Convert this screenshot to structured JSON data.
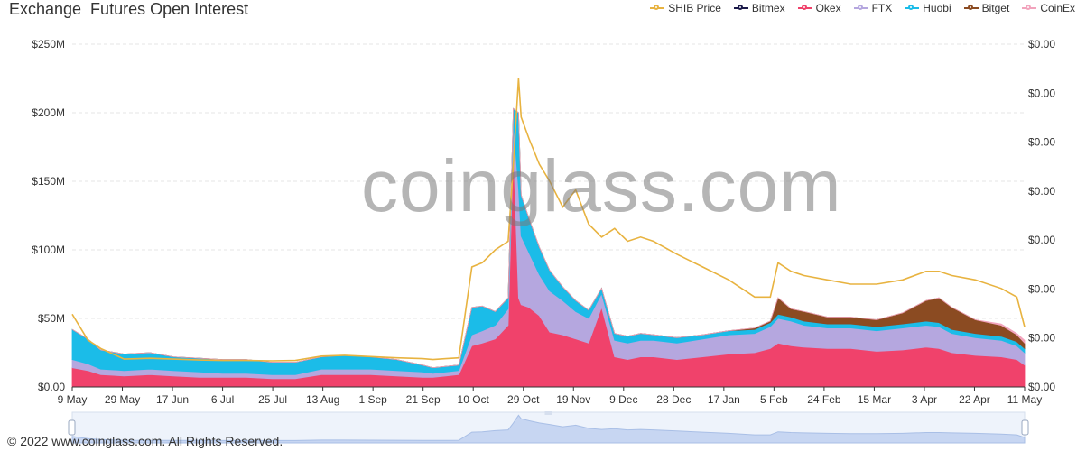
{
  "title": "Exchange  Futures Open Interest",
  "watermark": "coinglass.com",
  "footer": "© 2022 www.coinglass.com. All Rights Reserved.",
  "colors": {
    "shib": "#e8b340",
    "bitmex": "#1b1a4a",
    "okex": "#f0426b",
    "ftx": "#b5a7df",
    "huobi": "#1bbce8",
    "bitget": "#8b4b22",
    "coinex": "#f2a4bd"
  },
  "chart_data": {
    "type": "area",
    "title": "Exchange  Futures Open Interest",
    "x_ticks": [
      "9 May",
      "29 May",
      "17 Jun",
      "6 Jul",
      "25 Jul",
      "13 Aug",
      "1 Sep",
      "21 Sep",
      "10 Oct",
      "29 Oct",
      "19 Nov",
      "9 Dec",
      "28 Dec",
      "17 Jan",
      "5 Feb",
      "24 Feb",
      "15 Mar",
      "3 Apr",
      "22 Apr",
      "11 May"
    ],
    "y_left_ticks": [
      "$0.00",
      "$50M",
      "$100M",
      "$150M",
      "$200M",
      "$250M"
    ],
    "y_left_range": [
      0,
      250
    ],
    "y_left_unit": "M",
    "y_right_ticks": [
      "$0.00",
      "$0.00",
      "$0.00",
      "$0.00",
      "$0.00",
      "$0.00",
      "$0.00",
      "$0.00"
    ],
    "y_right_range": [
      0,
      8e-05
    ],
    "legend_position": "top-right",
    "grid": true,
    "stacked": true,
    "x": [
      "2021-05-09",
      "2021-05-15",
      "2021-05-20",
      "2021-05-29",
      "2021-06-08",
      "2021-06-17",
      "2021-06-27",
      "2021-07-06",
      "2021-07-15",
      "2021-07-25",
      "2021-08-03",
      "2021-08-13",
      "2021-08-22",
      "2021-09-01",
      "2021-09-11",
      "2021-09-21",
      "2021-09-25",
      "2021-09-30",
      "2021-10-05",
      "2021-10-10",
      "2021-10-14",
      "2021-10-19",
      "2021-10-24",
      "2021-10-26",
      "2021-10-28",
      "2021-10-29",
      "2021-11-01",
      "2021-11-05",
      "2021-11-09",
      "2021-11-14",
      "2021-11-19",
      "2021-11-24",
      "2021-11-29",
      "2021-12-04",
      "2021-12-09",
      "2021-12-14",
      "2021-12-19",
      "2021-12-28",
      "2022-01-07",
      "2022-01-17",
      "2022-01-27",
      "2022-02-02",
      "2022-02-05",
      "2022-02-10",
      "2022-02-15",
      "2022-02-24",
      "2022-03-05",
      "2022-03-15",
      "2022-03-25",
      "2022-04-03",
      "2022-04-08",
      "2022-04-13",
      "2022-04-22",
      "2022-05-02",
      "2022-05-08",
      "2022-05-11"
    ],
    "series": [
      {
        "name": "Bitmex",
        "values": [
          0,
          0,
          0,
          0,
          0,
          0,
          0,
          0,
          0,
          0,
          0,
          0,
          0,
          0,
          0,
          0,
          0,
          0,
          0,
          0,
          0,
          0,
          0,
          0,
          0,
          0,
          0,
          0,
          0,
          0,
          0,
          0,
          0,
          0,
          0,
          0,
          0,
          0,
          0,
          0,
          0,
          0,
          0,
          0,
          0,
          0,
          0,
          0,
          0,
          0,
          0,
          0,
          0,
          0,
          0,
          0
        ]
      },
      {
        "name": "Okex",
        "values": [
          14,
          12,
          9,
          8,
          9,
          8,
          7,
          7,
          7,
          6,
          6,
          9,
          9,
          9,
          8,
          7,
          7,
          8,
          9,
          30,
          32,
          35,
          45,
          175,
          65,
          60,
          58,
          52,
          40,
          38,
          35,
          32,
          58,
          22,
          20,
          22,
          22,
          20,
          22,
          24,
          25,
          28,
          32,
          30,
          29,
          28,
          28,
          26,
          27,
          29,
          28,
          25,
          23,
          22,
          20,
          16
        ]
      },
      {
        "name": "FTX",
        "values": [
          6,
          5,
          4,
          4,
          4,
          4,
          4,
          3,
          3,
          3,
          3,
          4,
          4,
          4,
          4,
          4,
          3,
          3,
          3,
          8,
          9,
          10,
          12,
          18,
          80,
          50,
          40,
          30,
          30,
          25,
          20,
          18,
          10,
          12,
          12,
          12,
          12,
          12,
          13,
          14,
          14,
          16,
          18,
          18,
          16,
          15,
          15,
          15,
          16,
          16,
          16,
          14,
          13,
          12,
          10,
          9
        ]
      },
      {
        "name": "Huobi",
        "values": [
          22,
          18,
          14,
          12,
          12,
          10,
          10,
          10,
          10,
          9,
          9,
          9,
          10,
          9,
          8,
          5,
          4,
          4,
          4,
          20,
          18,
          10,
          8,
          10,
          55,
          30,
          25,
          20,
          15,
          10,
          8,
          6,
          4,
          5,
          5,
          5,
          4,
          4,
          3,
          3,
          3,
          3,
          3,
          3,
          3,
          3,
          3,
          3,
          3,
          3,
          3,
          3,
          3,
          3,
          3,
          3
        ]
      },
      {
        "name": "Bitget",
        "values": [
          0,
          0,
          0,
          0,
          0,
          0,
          0,
          0,
          0,
          0,
          0,
          0,
          0,
          0,
          0,
          0,
          0,
          0,
          0,
          0,
          0,
          0,
          0,
          0,
          0,
          0,
          0,
          0,
          0,
          0,
          0,
          0,
          0,
          0,
          0,
          0,
          0,
          0,
          0,
          0,
          1,
          1,
          12,
          6,
          7,
          5,
          5,
          5,
          8,
          15,
          18,
          16,
          10,
          8,
          5,
          4
        ]
      },
      {
        "name": "CoinEx",
        "values": [
          0,
          0,
          0,
          0,
          0,
          0,
          0,
          0,
          0,
          0,
          0,
          0,
          0,
          0,
          0,
          0,
          0,
          0,
          0,
          0,
          0,
          0,
          0,
          0,
          0,
          0,
          0,
          0,
          0,
          0,
          0,
          0,
          0,
          0,
          0,
          0,
          0,
          0,
          0,
          0,
          0,
          0,
          0,
          0,
          0,
          0,
          0,
          0,
          0,
          0,
          0,
          0,
          0,
          1,
          1,
          2
        ]
      },
      {
        "name": "SHIB Price",
        "axis": "right",
        "values": [
          1.7e-05,
          1.1e-05,
          9e-06,
          6.5e-06,
          6.7e-06,
          6.5e-06,
          6.3e-06,
          6.2e-06,
          6.2e-06,
          6.1e-06,
          6.2e-06,
          7.2e-06,
          7.4e-06,
          7.1e-06,
          6.8e-06,
          6.6e-06,
          6.4e-06,
          6.6e-06,
          6.8e-06,
          2.8e-05,
          2.9e-05,
          3.2e-05,
          3.4e-05,
          5.2e-05,
          7.2e-05,
          6.3e-05,
          5.8e-05,
          5.2e-05,
          4.8e-05,
          4.2e-05,
          4.6e-05,
          3.8e-05,
          3.5e-05,
          3.7e-05,
          3.4e-05,
          3.5e-05,
          3.4e-05,
          3.1e-05,
          2.8e-05,
          2.5e-05,
          2.1e-05,
          2.1e-05,
          2.9e-05,
          2.7e-05,
          2.6e-05,
          2.5e-05,
          2.4e-05,
          2.4e-05,
          2.5e-05,
          2.7e-05,
          2.7e-05,
          2.6e-05,
          2.5e-05,
          2.3e-05,
          2.1e-05,
          1.4e-05
        ]
      }
    ]
  }
}
